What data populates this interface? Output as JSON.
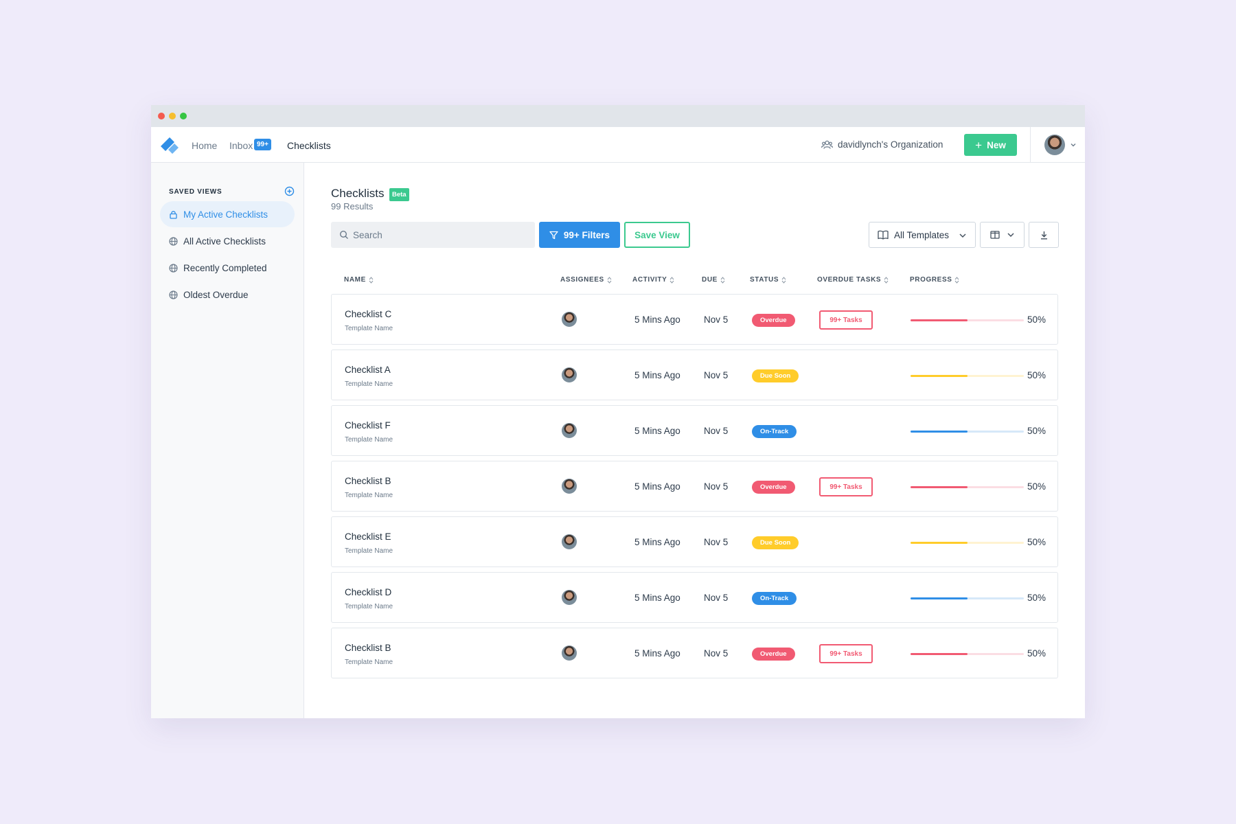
{
  "nav": {
    "home": "Home",
    "inbox": "Inbox",
    "inbox_badge": "99+",
    "checklists": "Checklists",
    "org": "davidlynch's Organization",
    "new_label": "New"
  },
  "sidebar": {
    "title": "SAVED VIEWS",
    "items": [
      {
        "label": "My Active Checklists",
        "icon": "lock-icon",
        "active": true
      },
      {
        "label": "All Active Checklists",
        "icon": "globe-icon"
      },
      {
        "label": "Recently Completed",
        "icon": "globe-icon"
      },
      {
        "label": "Oldest Overdue",
        "icon": "globe-icon"
      }
    ]
  },
  "main": {
    "title": "Checklists",
    "beta": "Beta",
    "results": "99 Results",
    "search_placeholder": "Search",
    "filters_label": "99+ Filters",
    "save_view_label": "Save View",
    "templates_label": "All Templates"
  },
  "table": {
    "headers": [
      "NAME",
      "ASSIGNEES",
      "ACTIVITY",
      "DUE",
      "STATUS",
      "OVERDUE TASKS",
      "PROGRESS"
    ],
    "rows": [
      {
        "name": "Checklist C",
        "template": "Template Name",
        "activity": "5 Mins Ago",
        "due": "Nov 5",
        "status": "Overdue",
        "overdue_tasks": "99+ Tasks",
        "progress": "50%"
      },
      {
        "name": "Checklist A",
        "template": "Template Name",
        "activity": "5 Mins Ago",
        "due": "Nov 5",
        "status": "Due Soon",
        "overdue_tasks": "",
        "progress": "50%"
      },
      {
        "name": "Checklist F",
        "template": "Template Name",
        "activity": "5 Mins Ago",
        "due": "Nov 5",
        "status": "On-Track",
        "overdue_tasks": "",
        "progress": "50%"
      },
      {
        "name": "Checklist B",
        "template": "Template Name",
        "activity": "5 Mins Ago",
        "due": "Nov 5",
        "status": "Overdue",
        "overdue_tasks": "99+ Tasks",
        "progress": "50%"
      },
      {
        "name": "Checklist E",
        "template": "Template Name",
        "activity": "5 Mins Ago",
        "due": "Nov 5",
        "status": "Due Soon",
        "overdue_tasks": "",
        "progress": "50%"
      },
      {
        "name": "Checklist D",
        "template": "Template Name",
        "activity": "5 Mins Ago",
        "due": "Nov 5",
        "status": "On-Track",
        "overdue_tasks": "",
        "progress": "50%"
      },
      {
        "name": "Checklist B",
        "template": "Template Name",
        "activity": "5 Mins Ago",
        "due": "Nov 5",
        "status": "Overdue",
        "overdue_tasks": "99+ Tasks",
        "progress": "50%"
      }
    ]
  },
  "colors": {
    "accent_blue": "#2f8ee6",
    "accent_green": "#3bc98f",
    "overdue": "#f15a72",
    "due_soon": "#ffcc2a",
    "on_track": "#2f8ee6"
  }
}
